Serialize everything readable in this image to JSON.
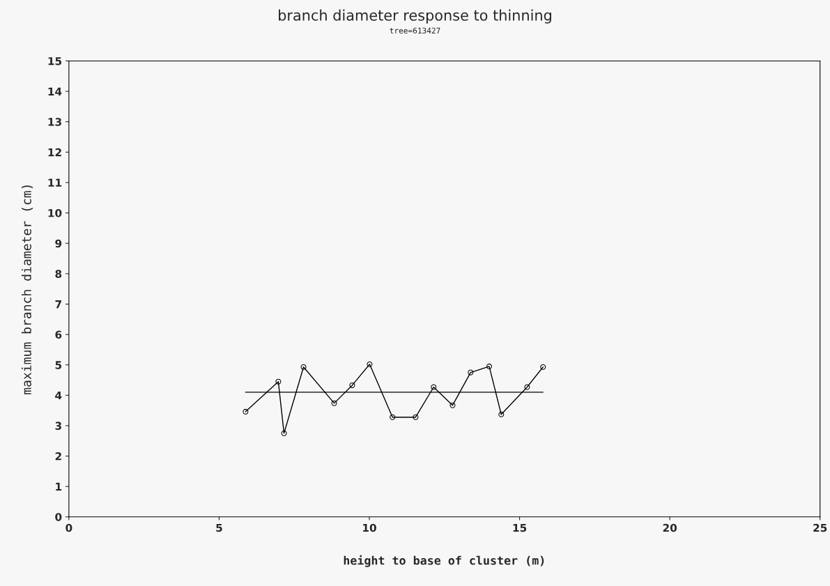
{
  "chart_data": {
    "type": "line",
    "title": "branch diameter response to thinning",
    "subtitle": "tree=613427",
    "xlabel": "height to base of cluster (m)",
    "ylabel": "maximum branch diameter (cm)",
    "xlim": [
      0,
      25
    ],
    "xticks": [
      0,
      5,
      10,
      15,
      20,
      25
    ],
    "ylim": [
      0,
      15
    ],
    "yticks": [
      0,
      1,
      2,
      3,
      4,
      5,
      6,
      7,
      8,
      9,
      10,
      11,
      12,
      13,
      14,
      15
    ],
    "grid": false,
    "legend": false,
    "series": [
      {
        "color": "#000000",
        "marker": "circle",
        "line_style": "solid",
        "x": [
          5.88,
          6.97,
          7.16,
          7.81,
          8.83,
          9.43,
          10.01,
          10.77,
          11.54,
          12.14,
          12.77,
          13.37,
          13.99,
          14.39,
          15.25,
          15.78
        ],
        "values": [
          3.46,
          4.45,
          2.75,
          4.93,
          3.74,
          4.33,
          5.02,
          3.28,
          3.28,
          4.27,
          3.67,
          4.75,
          4.95,
          3.37,
          4.27,
          4.93
        ]
      },
      {
        "color": "#000000",
        "marker": "none",
        "line_style": "solid",
        "x": [
          5.88,
          15.78
        ],
        "values": [
          4.1,
          4.1
        ]
      }
    ]
  }
}
